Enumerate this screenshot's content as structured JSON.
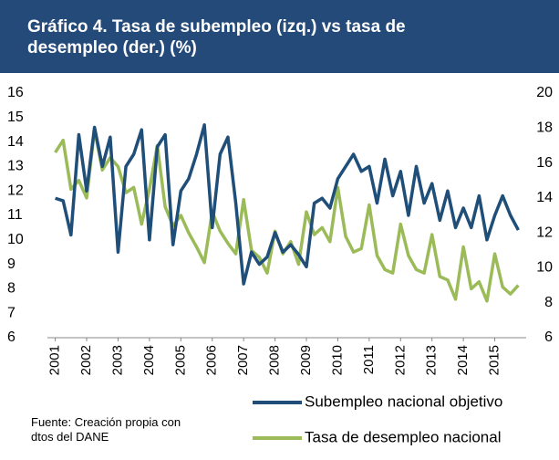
{
  "chart_data": {
    "type": "line",
    "title": "Gráfico 4. Tasa de subempleo (izq.) vs tasa de desempleo (der.) (%)",
    "note": "Fuente: Creación propia con dtos del DANE",
    "x": [
      2001,
      2001.25,
      2001.5,
      2001.75,
      2002,
      2002.25,
      2002.5,
      2002.75,
      2003,
      2003.25,
      2003.5,
      2003.75,
      2004,
      2004.25,
      2004.5,
      2004.75,
      2005,
      2005.25,
      2005.5,
      2005.75,
      2006,
      2006.25,
      2006.5,
      2006.75,
      2007,
      2007.25,
      2007.5,
      2007.75,
      2008,
      2008.25,
      2008.5,
      2008.75,
      2009,
      2009.25,
      2009.5,
      2009.75,
      2010,
      2010.25,
      2010.5,
      2010.75,
      2011,
      2011.25,
      2011.5,
      2011.75,
      2012,
      2012.25,
      2012.5,
      2012.75,
      2013,
      2013.25,
      2013.5,
      2013.75,
      2014,
      2014.25,
      2014.5,
      2014.75,
      2015,
      2015.25,
      2015.5,
      2015.75
    ],
    "series": [
      {
        "name": "Subempleo nacional objetivo",
        "color": "#1f4e79",
        "axis": "y",
        "values": [
          11.7,
          11.6,
          10.2,
          14.3,
          12.0,
          14.6,
          13.0,
          14.2,
          9.5,
          13.0,
          13.5,
          14.5,
          10.0,
          13.8,
          14.3,
          9.8,
          12.0,
          12.5,
          13.5,
          14.7,
          10.5,
          13.5,
          14.2,
          11.5,
          8.2,
          9.5,
          9.0,
          9.3,
          10.3,
          9.5,
          9.8,
          9.4,
          8.9,
          11.5,
          11.7,
          11.3,
          12.5,
          13.0,
          13.5,
          12.8,
          13.0,
          11.5,
          13.3,
          11.8,
          12.8,
          11.0,
          13.0,
          11.5,
          12.3,
          10.8,
          12.0,
          10.5,
          11.3,
          10.5,
          11.8,
          10.0,
          11.0,
          11.8,
          11.0,
          10.4
        ]
      },
      {
        "name": "Tasa de desempleo nacional",
        "color": "#9bbb59",
        "axis": "y2",
        "values": [
          16.6,
          17.3,
          14.5,
          15.0,
          14.0,
          17.9,
          15.6,
          16.3,
          15.8,
          14.3,
          14.6,
          12.5,
          14.5,
          17.0,
          13.5,
          12.4,
          13.0,
          12.0,
          11.2,
          10.3,
          13.2,
          12.1,
          11.4,
          10.8,
          13.9,
          11.0,
          10.6,
          9.7,
          12.1,
          10.8,
          11.5,
          10.2,
          13.2,
          11.9,
          12.3,
          11.5,
          14.6,
          11.8,
          10.9,
          11.1,
          13.6,
          10.7,
          9.9,
          9.7,
          12.5,
          10.7,
          9.9,
          9.7,
          11.9,
          9.5,
          9.3,
          8.2,
          11.2,
          8.8,
          9.2,
          8.1,
          10.8,
          8.9,
          8.5,
          9.0
        ]
      }
    ],
    "xlim": [
      2000.75,
      2016.0
    ],
    "xticks": [
      2001,
      2002,
      2003,
      2004,
      2005,
      2006,
      2007,
      2008,
      2009,
      2010,
      2011,
      2012,
      2013,
      2014,
      2015
    ],
    "ylim": [
      6,
      16
    ],
    "yticks": [
      6,
      7,
      8,
      9,
      10,
      11,
      12,
      13,
      14,
      15,
      16
    ],
    "y2lim": [
      6,
      20
    ],
    "y2ticks": [
      6,
      8,
      10,
      12,
      14,
      16,
      18,
      20
    ],
    "grid": false
  }
}
